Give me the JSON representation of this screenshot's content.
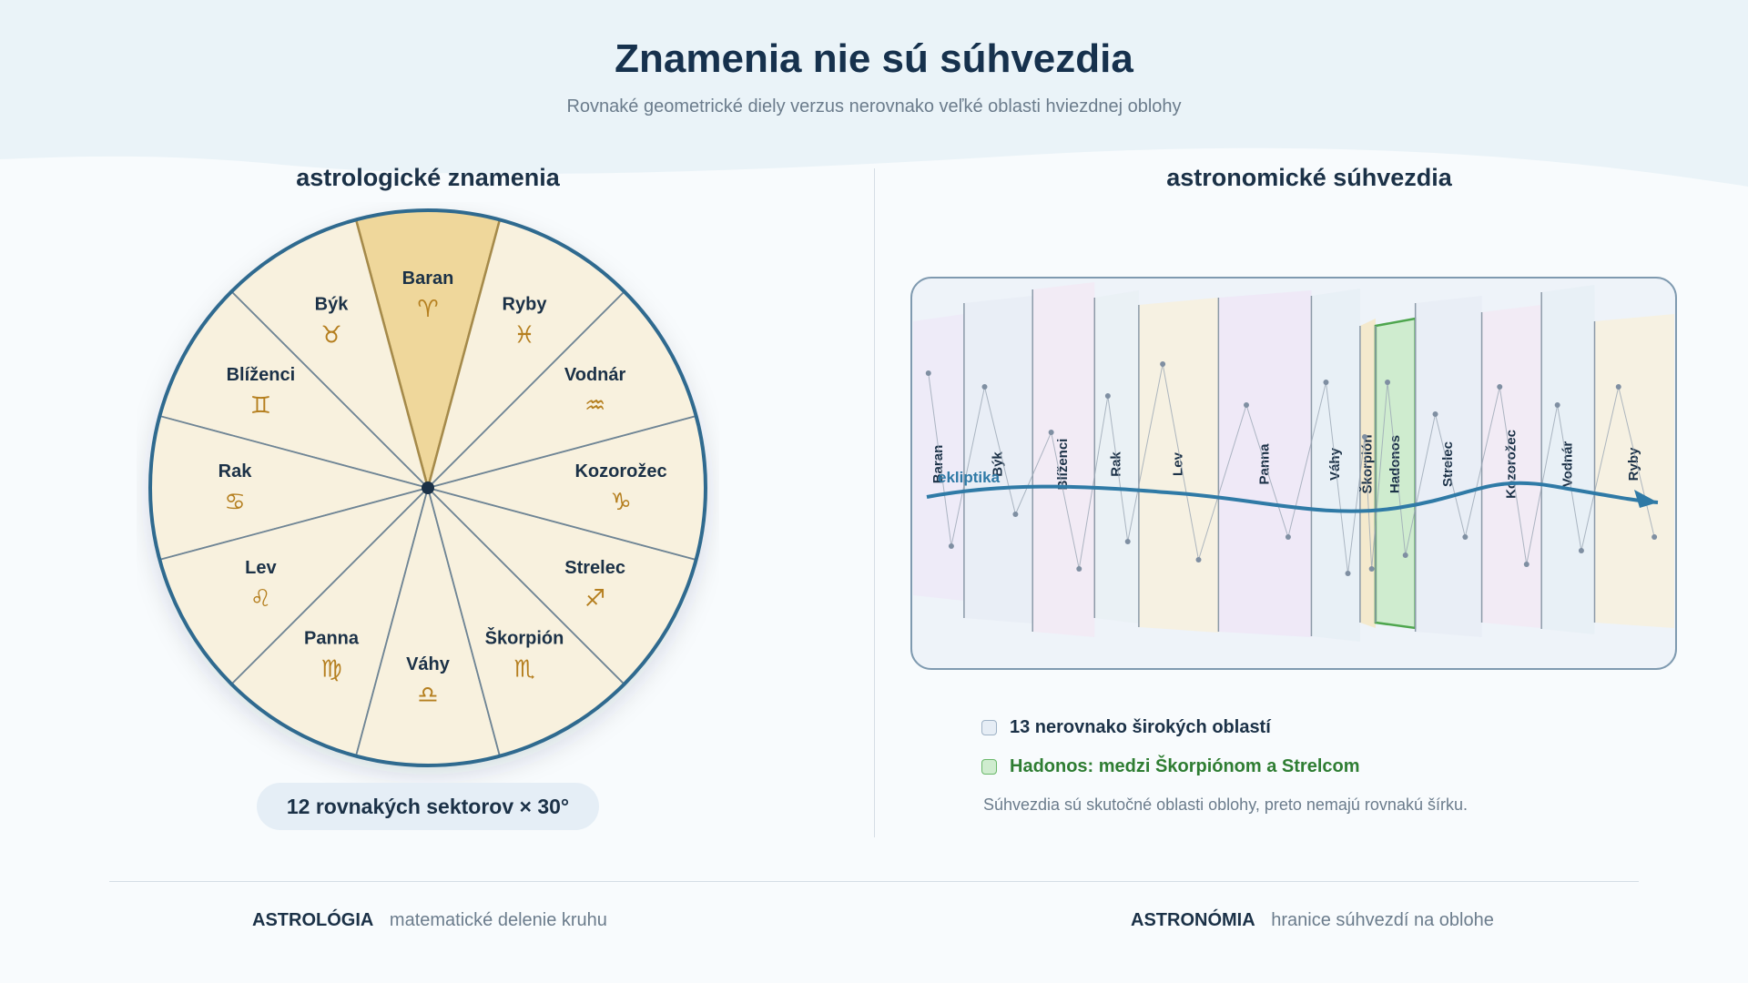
{
  "title": "Znamenia nie sú súhvezdia",
  "subtitle": "Rovnaké geometrické diely verzus nerovnako veľké oblasti hviezdnej oblohy",
  "left_panel": {
    "title": "astrologické znamenia",
    "signs": [
      {
        "name": "Baran",
        "symbol": "♈",
        "highlighted": true
      },
      {
        "name": "Býk",
        "symbol": "♉"
      },
      {
        "name": "Blíženci",
        "symbol": "♊"
      },
      {
        "name": "Rak",
        "symbol": "♋"
      },
      {
        "name": "Lev",
        "symbol": "♌"
      },
      {
        "name": "Panna",
        "symbol": "♍"
      },
      {
        "name": "Váhy",
        "symbol": "♎"
      },
      {
        "name": "Škorpión",
        "symbol": "♏"
      },
      {
        "name": "Strelec",
        "symbol": "♐"
      },
      {
        "name": "Kozorožec",
        "symbol": "♑"
      },
      {
        "name": "Vodnár",
        "symbol": "♒"
      },
      {
        "name": "Ryby",
        "symbol": "♓"
      }
    ],
    "badge": "12 rovnakých sektorov × 30°"
  },
  "right_panel": {
    "title": "astronomické súhvezdia",
    "ecliptic_label": "ekliptika",
    "constellations": [
      {
        "name": "Baran",
        "relative_width": 1.15
      },
      {
        "name": "Býk",
        "relative_width": 1.55
      },
      {
        "name": "Blíženci",
        "relative_width": 1.4
      },
      {
        "name": "Rak",
        "relative_width": 1.0
      },
      {
        "name": "Lev",
        "relative_width": 1.8
      },
      {
        "name": "Panna",
        "relative_width": 2.1
      },
      {
        "name": "Váhy",
        "relative_width": 1.1
      },
      {
        "name": "Škorpión",
        "relative_width": 0.35
      },
      {
        "name": "Hadonos",
        "relative_width": 0.9,
        "highlighted": true
      },
      {
        "name": "Strelec",
        "relative_width": 1.5
      },
      {
        "name": "Kozorožec",
        "relative_width": 1.35
      },
      {
        "name": "Vodnár",
        "relative_width": 1.2
      },
      {
        "name": "Ryby",
        "relative_width": 1.8
      }
    ],
    "legend": [
      {
        "label": "13 nerovnako širokých oblastí",
        "color": "#e6edf5",
        "border": "#9fb2c6",
        "text_color": "#1b3147"
      },
      {
        "label": "Hadonos: medzi Škorpiónom a Strelcom",
        "color": "#cfeccf",
        "border": "#6ab86a",
        "text_color": "#2e7d32"
      }
    ],
    "note": "Súhvezdia sú skutočné oblasti oblohy, preto nemajú rovnakú šírku."
  },
  "footer": [
    {
      "key": "ASTROLÓGIA",
      "value": "matematické delenie kruhu"
    },
    {
      "key": "ASTRONÓMIA",
      "value": "hranice súhvezdí na oblohe"
    }
  ],
  "colors": {
    "wheel_fill": "#f8f1de",
    "highlight_fill": "#efd79b",
    "wheel_border": "#2f6a8f",
    "symbol": "#b57f1f",
    "ecliptic": "#2f7aa6",
    "hadonos": "#cfeccf"
  }
}
